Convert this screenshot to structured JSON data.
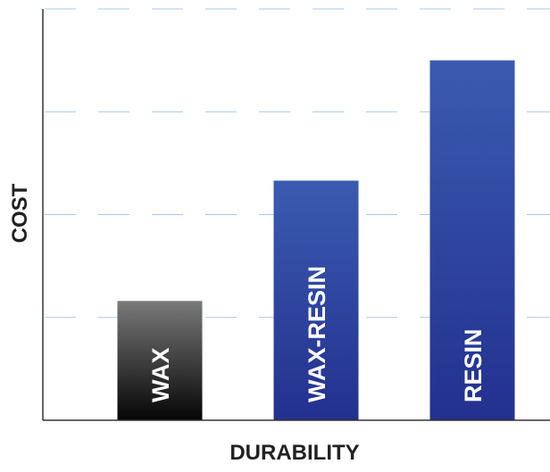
{
  "chart_data": {
    "type": "bar",
    "categories": [
      "WAX",
      "WAX-RESIN",
      "RESIN"
    ],
    "values": [
      1.16,
      2.33,
      3.5
    ],
    "xlabel": "DURABILITY",
    "ylabel": "COST",
    "ylim": [
      0,
      4
    ],
    "grid": true,
    "bar_styles": [
      {
        "gradient_top": "#7a7a7a",
        "gradient_bottom": "#050505"
      },
      {
        "gradient_top": "#3a5bb0",
        "gradient_bottom": "#23308f"
      },
      {
        "gradient_top": "#3a5bb0",
        "gradient_bottom": "#23308f"
      }
    ],
    "grid_color": "#a9c7ea",
    "axis_color": "#333333"
  }
}
